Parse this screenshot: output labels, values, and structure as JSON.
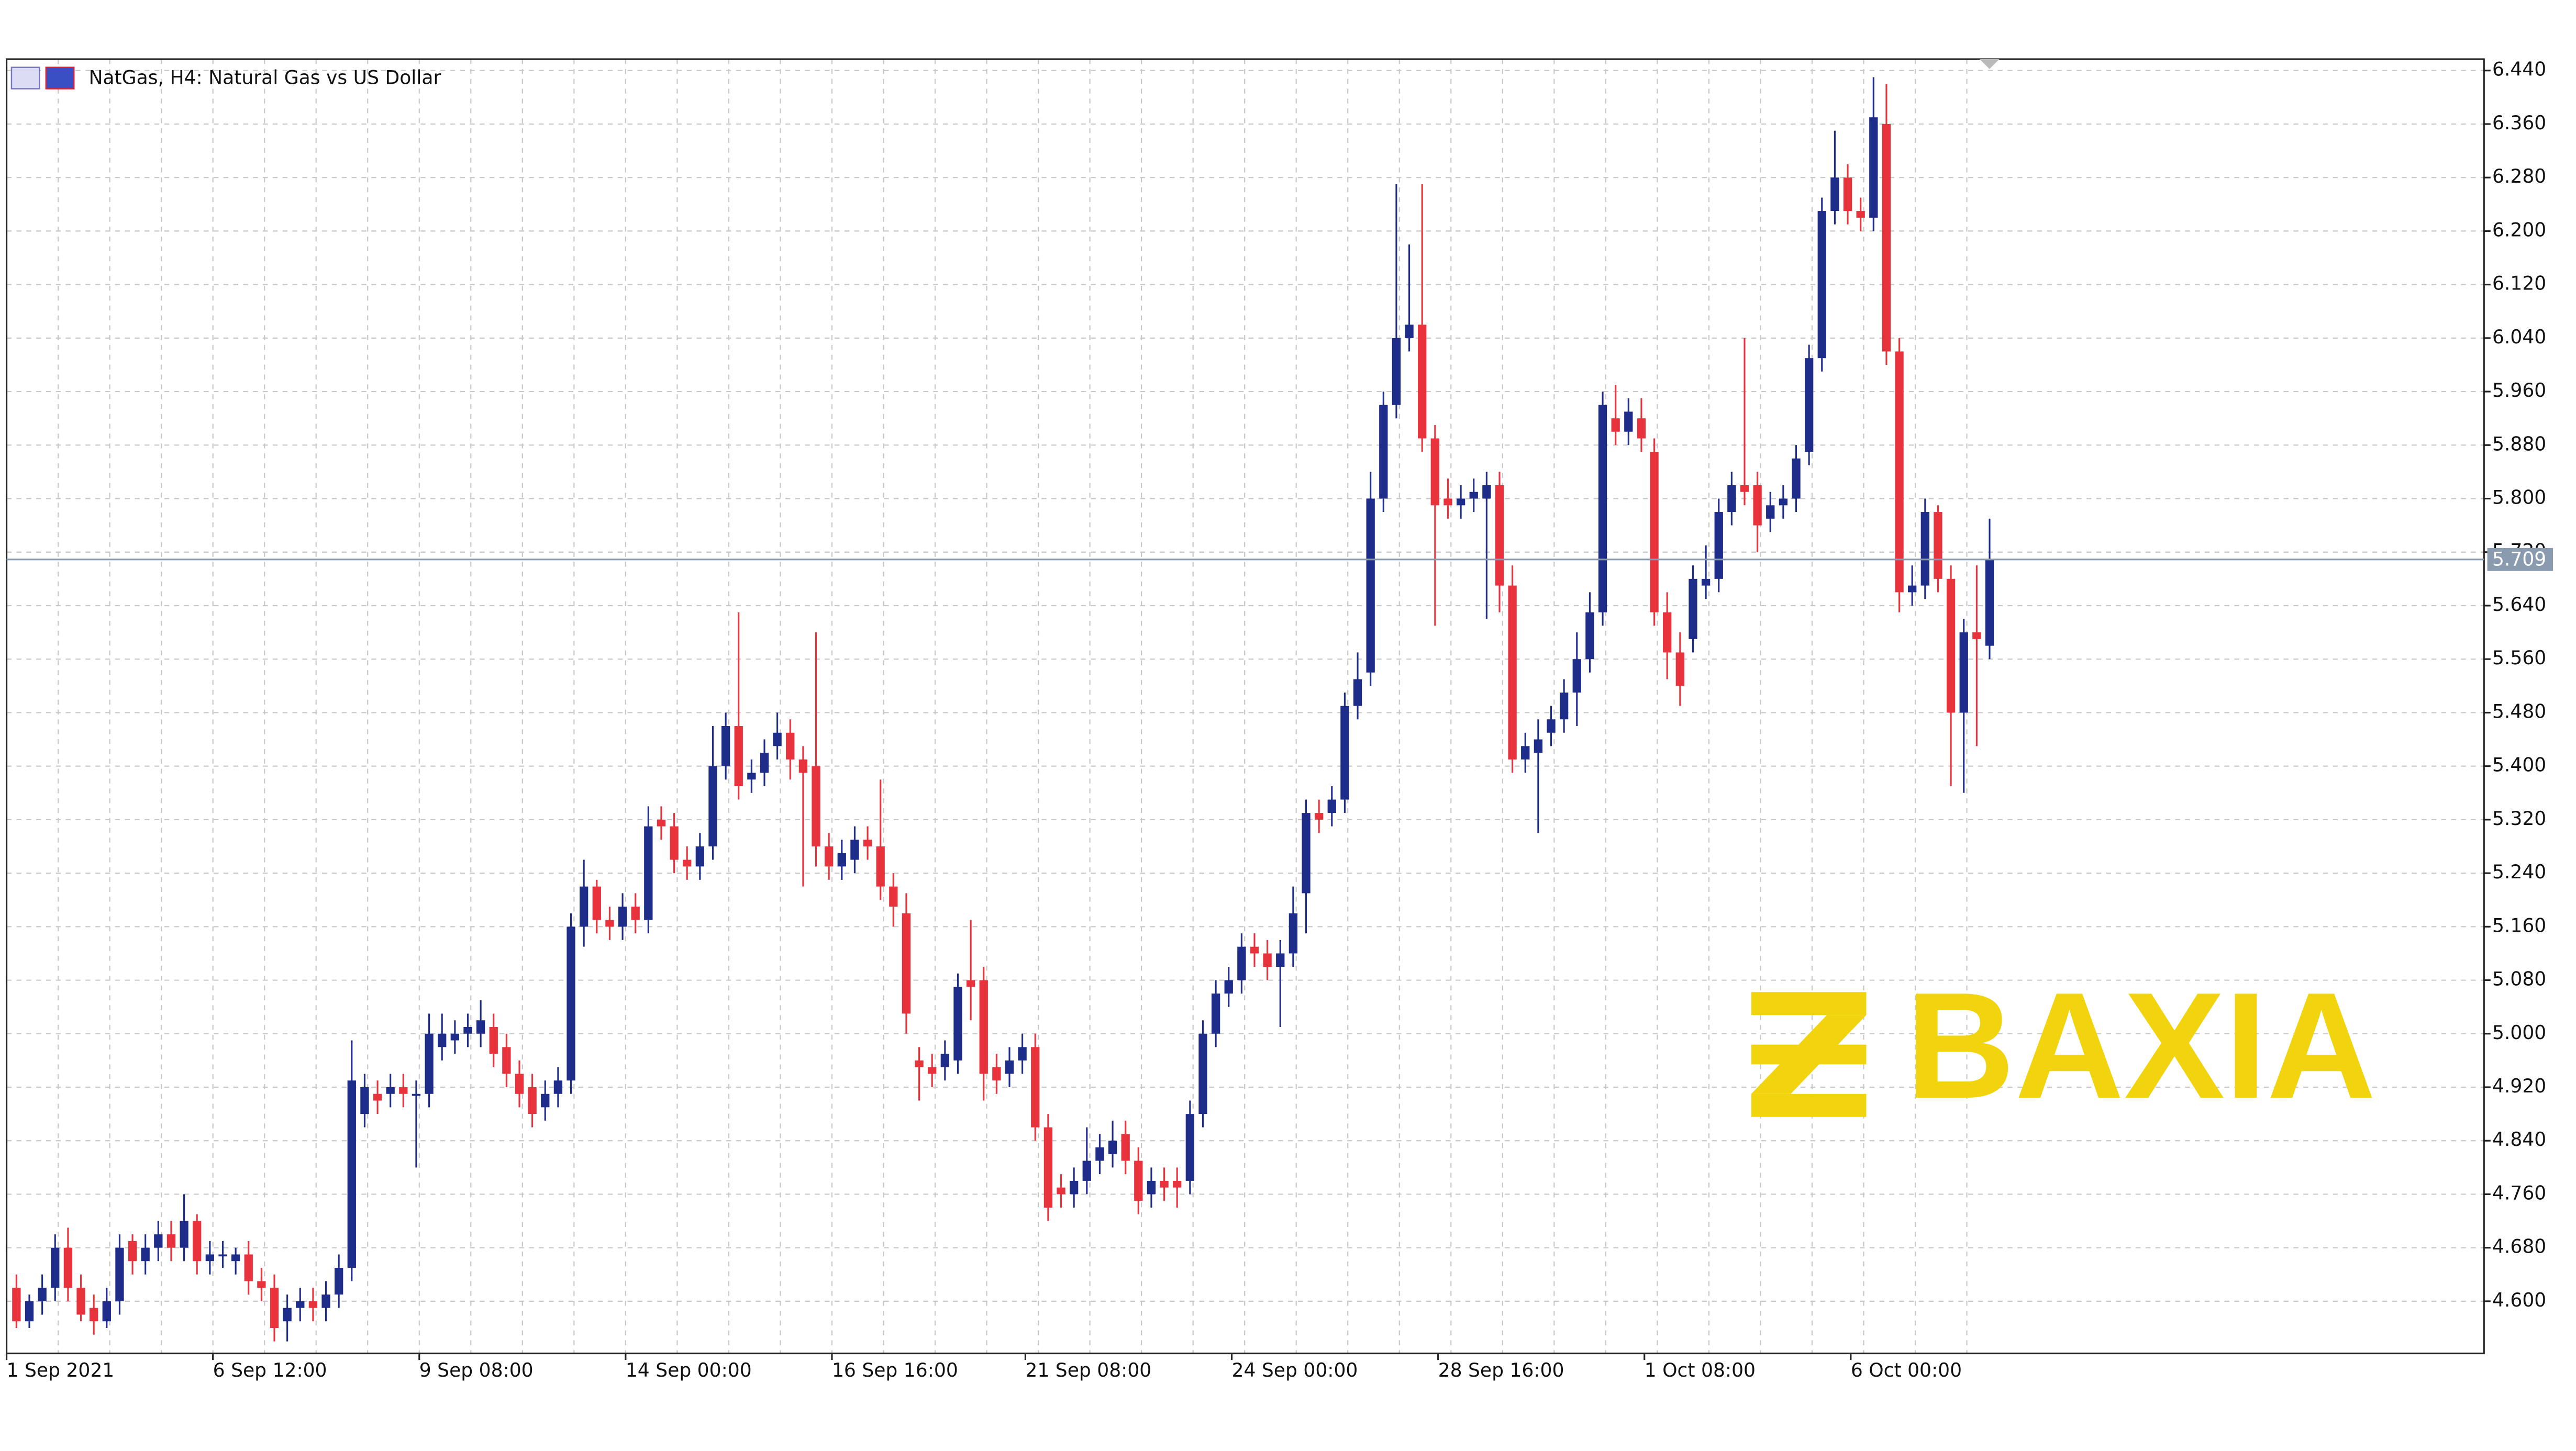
{
  "chart_data": {
    "type": "candlestick",
    "title": "NatGas, H4:  Natural Gas vs US Dollar",
    "watermark": "BAXIA",
    "up_color": "#1f2d8a",
    "down_color": "#e8323c",
    "grid": true,
    "ylim": [
      4.522,
      6.457
    ],
    "yticks": [
      {
        "value": 4.6,
        "label": "4.600"
      },
      {
        "value": 4.68,
        "label": "4.680"
      },
      {
        "value": 4.76,
        "label": "4.760"
      },
      {
        "value": 4.84,
        "label": "4.840"
      },
      {
        "value": 4.92,
        "label": "4.920"
      },
      {
        "value": 5.0,
        "label": "5.000"
      },
      {
        "value": 5.08,
        "label": "5.080"
      },
      {
        "value": 5.16,
        "label": "5.160"
      },
      {
        "value": 5.24,
        "label": "5.240"
      },
      {
        "value": 5.32,
        "label": "5.320"
      },
      {
        "value": 5.4,
        "label": "5.400"
      },
      {
        "value": 5.48,
        "label": "5.480"
      },
      {
        "value": 5.56,
        "label": "5.560"
      },
      {
        "value": 5.64,
        "label": "5.640"
      },
      {
        "value": 5.72,
        "label": "5.720"
      },
      {
        "value": 5.8,
        "label": "5.800"
      },
      {
        "value": 5.88,
        "label": "5.880"
      },
      {
        "value": 5.96,
        "label": "5.960"
      },
      {
        "value": 6.04,
        "label": "6.040"
      },
      {
        "value": 6.12,
        "label": "6.120"
      },
      {
        "value": 6.2,
        "label": "6.200"
      },
      {
        "value": 6.28,
        "label": "6.280"
      },
      {
        "value": 6.36,
        "label": "6.360"
      },
      {
        "value": 6.44,
        "label": "6.440"
      }
    ],
    "current_price": {
      "value": 5.709,
      "label": "5.709"
    },
    "categories": [
      "1 Sep 2021",
      null,
      null,
      null,
      null,
      null,
      null,
      null,
      null,
      null,
      null,
      null,
      null,
      null,
      null,
      null,
      "6 Sep 12:00",
      null,
      null,
      null,
      null,
      null,
      null,
      null,
      null,
      null,
      null,
      null,
      null,
      null,
      null,
      null,
      "9 Sep 08:00",
      null,
      null,
      null,
      null,
      null,
      null,
      null,
      null,
      null,
      null,
      null,
      null,
      null,
      null,
      null,
      "14 Sep 00:00",
      null,
      null,
      null,
      null,
      null,
      null,
      null,
      null,
      null,
      null,
      null,
      null,
      null,
      null,
      null,
      "16 Sep 16:00",
      null,
      null,
      null,
      null,
      null,
      null,
      null,
      null,
      null,
      null,
      null,
      null,
      null,
      null,
      "21 Sep 08:00",
      null,
      null,
      null,
      null,
      null,
      null,
      null,
      null,
      null,
      null,
      null,
      null,
      null,
      null,
      null,
      "24 Sep 00:00",
      null,
      null,
      null,
      null,
      null,
      null,
      null,
      null,
      null,
      null,
      null,
      null,
      null,
      null,
      null,
      "28 Sep 16:00",
      null,
      null,
      null,
      null,
      null,
      null,
      null,
      null,
      null,
      null,
      null,
      null,
      null,
      null,
      null,
      "1 Oct 08:00",
      null,
      null,
      null,
      null,
      null,
      null,
      null,
      null,
      null,
      null,
      null,
      null,
      null,
      null,
      null,
      "6 Oct 00:00",
      null,
      null,
      null,
      null,
      null,
      null,
      null,
      null,
      null,
      null
    ],
    "open": [
      4.62,
      4.57,
      4.6,
      4.62,
      4.68,
      4.62,
      4.59,
      4.57,
      4.6,
      4.69,
      4.66,
      4.68,
      4.7,
      4.68,
      4.72,
      4.66,
      4.67,
      4.66,
      4.67,
      4.63,
      4.62,
      4.57,
      4.59,
      4.6,
      4.59,
      4.61,
      4.65,
      4.88,
      4.91,
      4.91,
      4.92,
      4.91,
      4.91,
      4.98,
      4.99,
      5.0,
      5.0,
      5.01,
      4.98,
      4.94,
      4.92,
      4.89,
      4.91,
      4.93,
      5.16,
      5.22,
      5.17,
      5.16,
      5.19,
      5.17,
      5.32,
      5.31,
      5.26,
      5.25,
      5.28,
      5.4,
      5.46,
      5.38,
      5.39,
      5.43,
      5.45,
      5.41,
      5.4,
      5.28,
      5.25,
      5.26,
      5.29,
      5.28,
      5.22,
      5.18,
      4.96,
      4.95,
      4.95,
      4.96,
      5.08,
      5.08,
      4.95,
      4.94,
      4.96,
      4.98,
      4.86,
      4.77,
      4.76,
      4.78,
      4.81,
      4.82,
      4.85,
      4.81,
      4.76,
      4.78,
      4.78,
      4.78,
      4.88,
      5.0,
      5.06,
      5.08,
      5.13,
      5.12,
      5.1,
      5.12,
      5.21,
      5.33,
      5.33,
      5.35,
      5.49,
      5.54,
      5.8,
      5.94,
      6.04,
      6.06,
      5.89,
      5.8,
      5.79,
      5.8,
      5.8,
      5.82,
      5.67,
      5.41,
      5.42,
      5.45,
      5.47,
      5.51,
      5.56,
      5.63,
      5.92,
      5.9,
      5.92,
      5.87,
      5.63,
      5.57,
      5.59,
      5.67,
      5.68,
      5.78,
      5.82,
      5.82,
      5.77,
      5.79,
      5.8,
      5.87,
      6.01,
      6.23,
      6.28,
      6.23,
      6.22,
      6.36,
      6.02,
      5.66,
      5.67,
      5.78,
      5.68,
      5.48,
      5.6,
      5.58
    ],
    "high": [
      4.64,
      4.61,
      4.64,
      4.7,
      4.71,
      4.64,
      4.61,
      4.62,
      4.7,
      4.7,
      4.7,
      4.72,
      4.72,
      4.76,
      4.73,
      4.69,
      4.69,
      4.68,
      4.69,
      4.65,
      4.64,
      4.61,
      4.62,
      4.62,
      4.63,
      4.67,
      4.99,
      4.94,
      4.93,
      4.94,
      4.94,
      4.93,
      5.03,
      5.03,
      5.02,
      5.03,
      5.05,
      5.03,
      5.0,
      4.96,
      4.94,
      4.93,
      4.95,
      5.18,
      5.26,
      5.23,
      5.19,
      5.21,
      5.21,
      5.34,
      5.34,
      5.33,
      5.28,
      5.3,
      5.46,
      5.48,
      5.63,
      5.41,
      5.44,
      5.48,
      5.47,
      5.43,
      5.6,
      5.3,
      5.29,
      5.31,
      5.31,
      5.38,
      5.24,
      5.21,
      4.98,
      4.97,
      4.99,
      5.09,
      5.17,
      5.1,
      4.97,
      4.98,
      5.0,
      5.0,
      4.88,
      4.79,
      4.8,
      4.86,
      4.85,
      4.87,
      4.87,
      4.83,
      4.8,
      4.8,
      4.8,
      4.9,
      5.02,
      5.08,
      5.1,
      5.15,
      5.15,
      5.14,
      5.14,
      5.22,
      5.35,
      5.35,
      5.37,
      5.51,
      5.57,
      5.84,
      5.96,
      6.27,
      6.18,
      6.27,
      5.91,
      5.83,
      5.82,
      5.83,
      5.84,
      5.84,
      5.7,
      5.45,
      5.47,
      5.49,
      5.53,
      5.6,
      5.66,
      5.96,
      5.97,
      5.95,
      5.95,
      5.89,
      5.66,
      5.6,
      5.7,
      5.73,
      5.8,
      5.84,
      6.04,
      5.84,
      5.81,
      5.82,
      5.88,
      6.03,
      6.25,
      6.35,
      6.3,
      6.25,
      6.43,
      6.42,
      6.04,
      5.7,
      5.8,
      5.79,
      5.7,
      5.62,
      5.7,
      5.77
    ],
    "low": [
      4.56,
      4.56,
      4.58,
      4.6,
      4.6,
      4.57,
      4.55,
      4.56,
      4.58,
      4.64,
      4.64,
      4.66,
      4.66,
      4.66,
      4.64,
      4.64,
      4.65,
      4.64,
      4.61,
      4.6,
      4.54,
      4.54,
      4.57,
      4.57,
      4.57,
      4.59,
      4.63,
      4.86,
      4.88,
      4.89,
      4.89,
      4.8,
      4.89,
      4.96,
      4.97,
      4.98,
      4.98,
      4.95,
      4.92,
      4.89,
      4.86,
      4.87,
      4.89,
      4.91,
      5.13,
      5.15,
      5.14,
      5.14,
      5.15,
      5.15,
      5.29,
      5.24,
      5.23,
      5.23,
      5.26,
      5.38,
      5.35,
      5.36,
      5.37,
      5.41,
      5.38,
      5.22,
      5.25,
      5.23,
      5.23,
      5.24,
      5.26,
      5.2,
      5.16,
      5.0,
      4.9,
      4.92,
      4.93,
      4.94,
      5.02,
      4.9,
      4.91,
      4.92,
      4.94,
      4.84,
      4.72,
      4.74,
      4.74,
      4.76,
      4.79,
      4.8,
      4.79,
      4.73,
      4.74,
      4.75,
      4.74,
      4.76,
      4.86,
      4.98,
      5.04,
      5.06,
      5.1,
      5.08,
      5.01,
      5.1,
      5.15,
      5.3,
      5.31,
      5.33,
      5.47,
      5.52,
      5.78,
      5.92,
      6.02,
      5.87,
      5.61,
      5.77,
      5.77,
      5.78,
      5.62,
      5.63,
      5.39,
      5.39,
      5.3,
      5.43,
      5.45,
      5.46,
      5.54,
      5.61,
      5.88,
      5.88,
      5.87,
      5.61,
      5.53,
      5.49,
      5.57,
      5.65,
      5.66,
      5.76,
      5.79,
      5.72,
      5.75,
      5.77,
      5.78,
      5.85,
      5.99,
      6.21,
      6.21,
      6.2,
      6.2,
      6.0,
      5.63,
      5.64,
      5.65,
      5.66,
      5.37,
      5.36,
      5.43,
      5.56
    ],
    "close": [
      4.57,
      4.6,
      4.62,
      4.68,
      4.62,
      4.58,
      4.57,
      4.6,
      4.68,
      4.66,
      4.68,
      4.7,
      4.68,
      4.72,
      4.66,
      4.67,
      4.67,
      4.67,
      4.63,
      4.62,
      4.56,
      4.59,
      4.6,
      4.59,
      4.61,
      4.65,
      4.93,
      4.92,
      4.9,
      4.92,
      4.91,
      4.91,
      5.0,
      5.0,
      5.0,
      5.01,
      5.02,
      4.97,
      4.94,
      4.91,
      4.88,
      4.91,
      4.93,
      5.16,
      5.22,
      5.17,
      5.16,
      5.19,
      5.17,
      5.31,
      5.31,
      5.26,
      5.25,
      5.28,
      5.4,
      5.46,
      5.37,
      5.39,
      5.42,
      5.45,
      5.41,
      5.39,
      5.28,
      5.25,
      5.27,
      5.29,
      5.28,
      5.22,
      5.19,
      5.03,
      4.95,
      4.94,
      4.97,
      5.07,
      5.07,
      4.94,
      4.93,
      4.96,
      4.98,
      4.86,
      4.74,
      4.76,
      4.78,
      4.81,
      4.83,
      4.84,
      4.81,
      4.75,
      4.78,
      4.77,
      4.77,
      4.88,
      5.0,
      5.06,
      5.08,
      5.13,
      5.12,
      5.1,
      5.12,
      5.18,
      5.33,
      5.32,
      5.35,
      5.49,
      5.53,
      5.8,
      5.94,
      6.04,
      6.06,
      5.89,
      5.79,
      5.79,
      5.8,
      5.81,
      5.82,
      5.67,
      5.41,
      5.43,
      5.44,
      5.47,
      5.51,
      5.56,
      5.63,
      5.94,
      5.9,
      5.93,
      5.89,
      5.63,
      5.57,
      5.52,
      5.68,
      5.68,
      5.78,
      5.82,
      5.81,
      5.76,
      5.79,
      5.8,
      5.86,
      6.01,
      6.23,
      6.28,
      6.23,
      6.22,
      6.37,
      6.02,
      5.66,
      5.67,
      5.78,
      5.68,
      5.48,
      5.6,
      5.59,
      5.71
    ]
  }
}
